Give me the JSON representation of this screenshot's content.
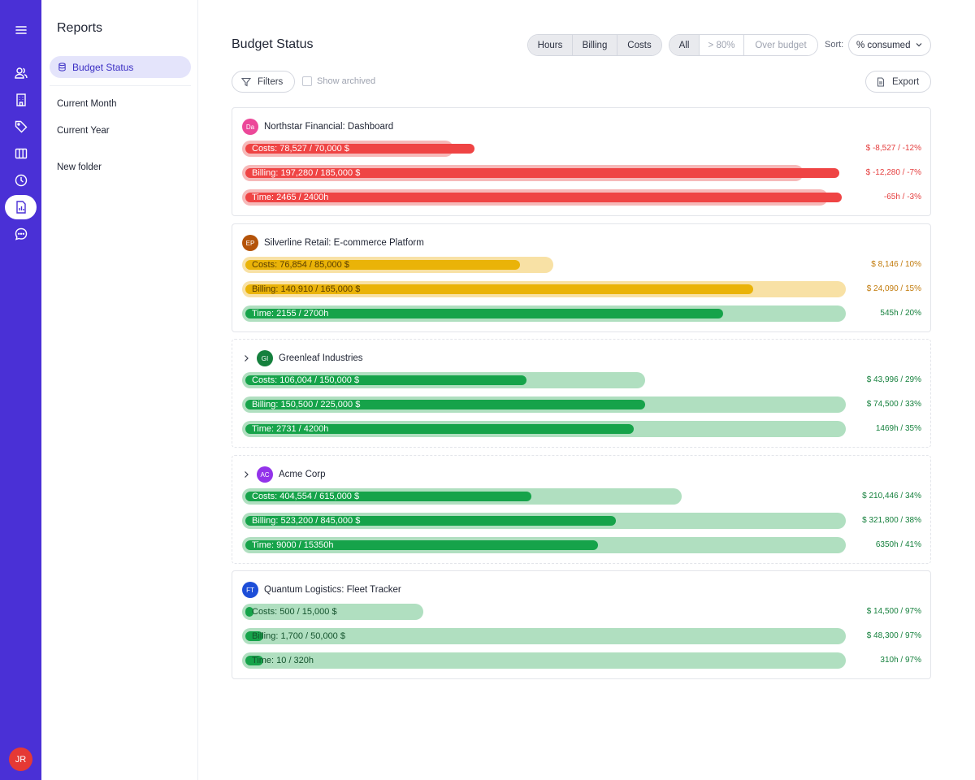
{
  "colors": {
    "rail": "#4a30d6",
    "red_fill": "#ef4444",
    "red_track": "#f6b9b9",
    "red_text": "#e53e3e",
    "amber_fill": "#eab308",
    "amber_track": "#f8e1a5",
    "amber_text": "#c17a0a",
    "green_fill": "#16a34a",
    "green_track": "#b0dfc0",
    "green_text": "#15803d"
  },
  "rail": {
    "items": [
      {
        "icon": "menu-icon"
      },
      {
        "icon": "users-icon"
      },
      {
        "icon": "building-icon"
      },
      {
        "icon": "tag-icon"
      },
      {
        "icon": "columns-icon"
      },
      {
        "icon": "clock-icon"
      },
      {
        "icon": "report-icon",
        "active": true
      },
      {
        "icon": "chat-icon"
      }
    ],
    "user_initials": "JR"
  },
  "sidebar": {
    "title": "Reports",
    "active_item": "Budget Status",
    "items": [
      "Current Month",
      "Current Year",
      "New folder"
    ]
  },
  "header": {
    "title": "Budget Status",
    "metric_tabs": [
      "Hours",
      "Billing",
      "Costs"
    ],
    "filter_tabs": [
      "All",
      "> 80%",
      "Over budget"
    ],
    "sort_label": "Sort:",
    "sort_value": "% consumed",
    "filters_label": "Filters",
    "show_archived_label": "Show archived",
    "show_archived_checked": false,
    "export_label": "Export"
  },
  "projects": [
    {
      "initials": "Da",
      "avatar_color": "#ec4899",
      "name": "Northstar Financial: Dashboard",
      "expandable": false,
      "bars": [
        {
          "label": "Costs: 78,527 / 70,000 $",
          "remaining": "$ -8,527 / -12%",
          "status": "red",
          "consumed": 1.12,
          "budget_scale": 0.35
        },
        {
          "label": "Billing: 197,280 / 185,000 $",
          "remaining": "$ -12,280 / -7%",
          "status": "red",
          "consumed": 1.07,
          "budget_scale": 0.93
        },
        {
          "label": "Time: 2465 / 2400h",
          "remaining": "-65h / -3%",
          "status": "red",
          "consumed": 1.03,
          "budget_scale": 0.97
        }
      ]
    },
    {
      "initials": "EP",
      "avatar_color": "#b45309",
      "name": "Silverline Retail: E-commerce Platform",
      "expandable": false,
      "bars": [
        {
          "label": "Costs: 76,854 / 85,000 $",
          "remaining": "$ 8,146 / 10%",
          "status": "amber",
          "consumed": 0.9,
          "budget_scale": 0.515
        },
        {
          "label": "Billing: 140,910 / 165,000 $",
          "remaining": "$ 24,090 / 15%",
          "status": "amber",
          "consumed": 0.85,
          "budget_scale": 1.0
        },
        {
          "label": "Time: 2155 / 2700h",
          "remaining": "545h / 20%",
          "status": "green",
          "consumed": 0.8,
          "budget_scale": 1.0
        }
      ]
    },
    {
      "initials": "GI",
      "avatar_color": "#15803d",
      "name": "Greenleaf Industries",
      "expandable": true,
      "dashed": true,
      "bars": [
        {
          "label": "Costs: 106,004 / 150,000 $",
          "remaining": "$ 43,996 / 29%",
          "status": "green",
          "consumed": 0.71,
          "budget_scale": 0.667
        },
        {
          "label": "Billing: 150,500 / 225,000 $",
          "remaining": "$ 74,500 / 33%",
          "status": "green",
          "consumed": 0.67,
          "budget_scale": 1.0
        },
        {
          "label": "Time: 2731 / 4200h",
          "remaining": "1469h / 35%",
          "status": "green",
          "consumed": 0.65,
          "budget_scale": 1.0
        }
      ]
    },
    {
      "initials": "AC",
      "avatar_color": "#9333ea",
      "name": "Acme Corp",
      "expandable": true,
      "dashed": true,
      "bars": [
        {
          "label": "Costs: 404,554 / 615,000 $",
          "remaining": "$ 210,446 / 34%",
          "status": "green",
          "consumed": 0.66,
          "budget_scale": 0.728
        },
        {
          "label": "Billing: 523,200 / 845,000 $",
          "remaining": "$ 321,800 / 38%",
          "status": "green",
          "consumed": 0.62,
          "budget_scale": 1.0
        },
        {
          "label": "Time: 9000 / 15350h",
          "remaining": "6350h / 41%",
          "status": "green",
          "consumed": 0.59,
          "budget_scale": 1.0
        }
      ]
    },
    {
      "initials": "FT",
      "avatar_color": "#1d4ed8",
      "name": "Quantum Logistics: Fleet Tracker",
      "expandable": false,
      "bars": [
        {
          "label": "Costs: 500 / 15,000 $",
          "remaining": "$ 14,500 / 97%",
          "status": "green",
          "consumed": 0.03,
          "budget_scale": 0.3
        },
        {
          "label": "Billing: 1,700 / 50,000 $",
          "remaining": "$ 48,300 / 97%",
          "status": "green",
          "consumed": 0.03,
          "budget_scale": 1.0
        },
        {
          "label": "Time: 10 / 320h",
          "remaining": "310h / 97%",
          "status": "green",
          "consumed": 0.03,
          "budget_scale": 1.0
        }
      ]
    }
  ]
}
